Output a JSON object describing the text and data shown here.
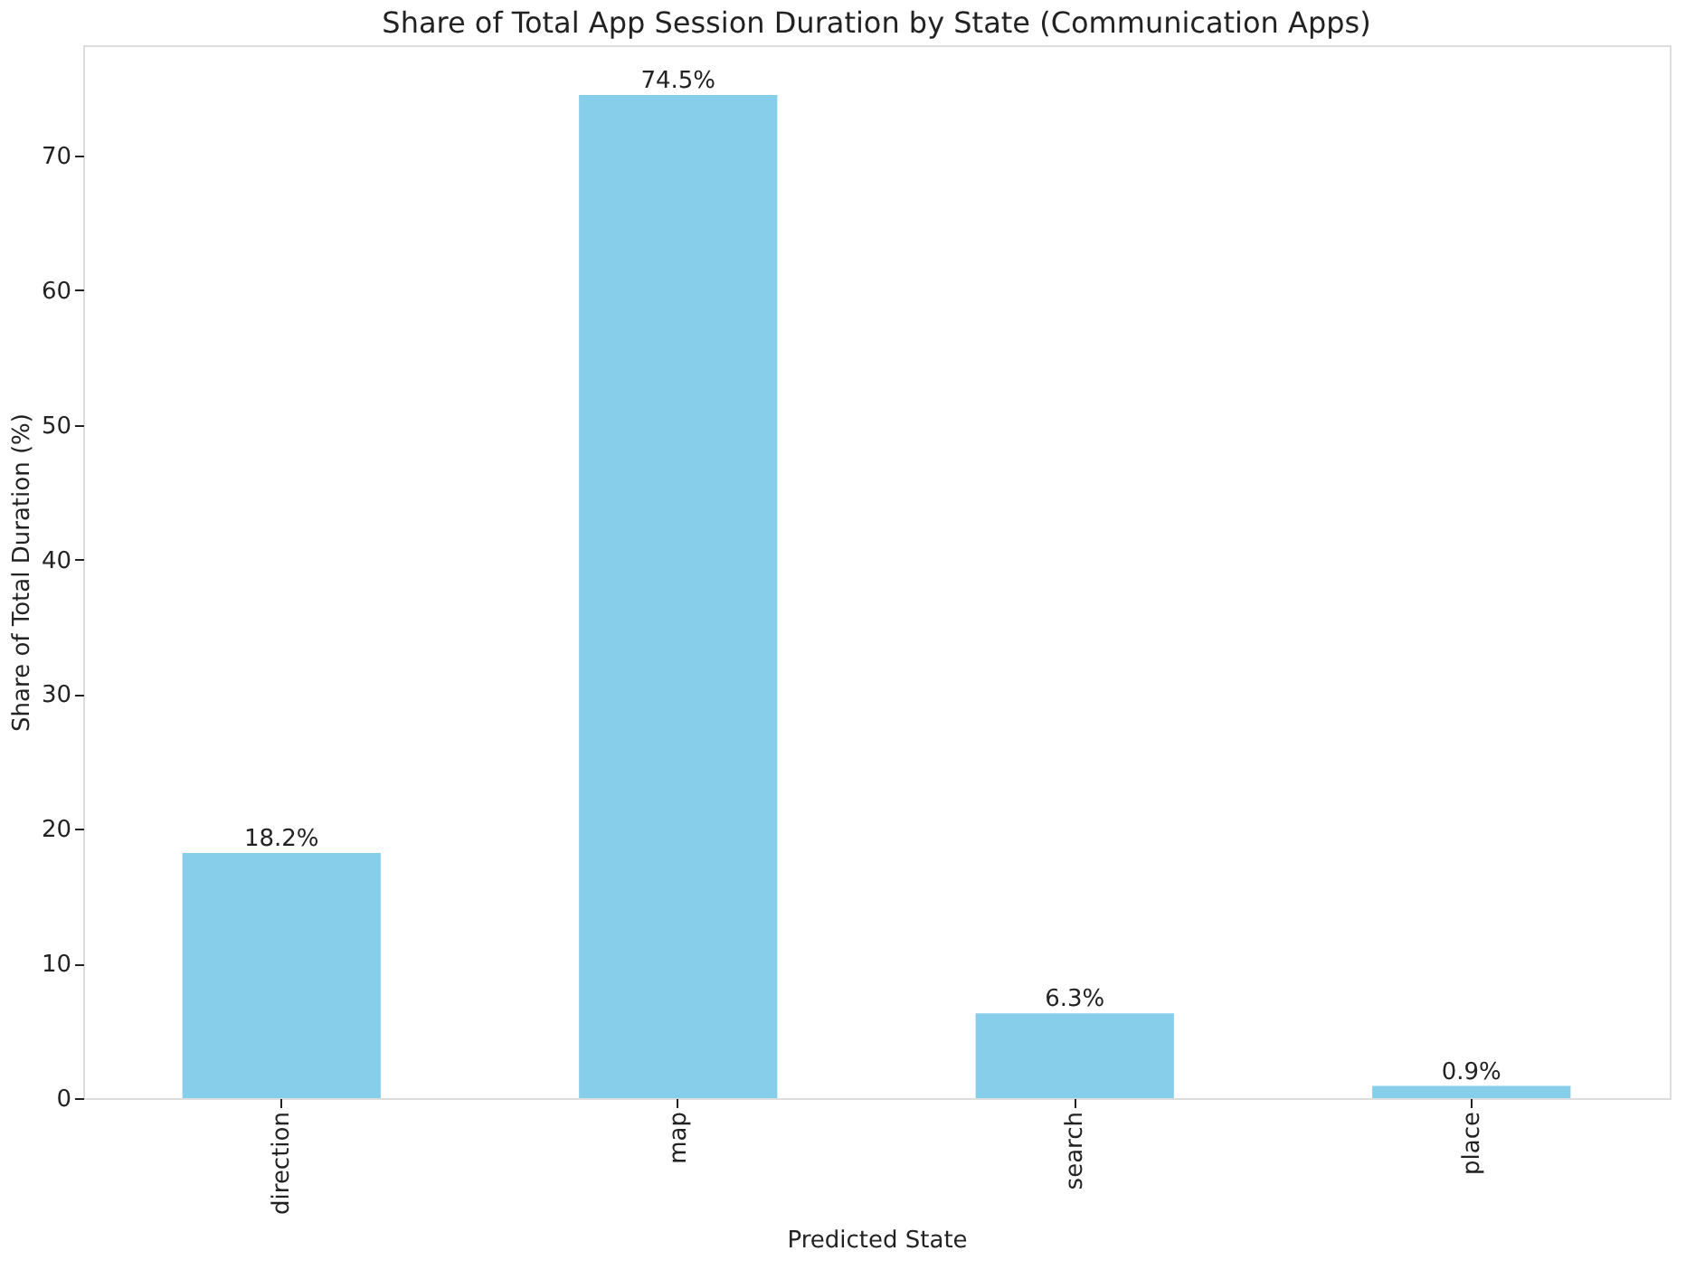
{
  "chart_data": {
    "type": "bar",
    "title": "Share of Total App Session Duration by State (Communication Apps)",
    "xlabel": "Predicted State",
    "ylabel": "Share of Total Duration (%)",
    "categories": [
      "direction",
      "map",
      "search",
      "place"
    ],
    "values": [
      18.2,
      74.5,
      6.3,
      0.9
    ],
    "value_labels": [
      "18.2%",
      "74.5%",
      "6.3%",
      "0.9%"
    ],
    "color": "#87ceeb",
    "ylim": [
      0,
      78.2
    ],
    "yticks": [
      0,
      10,
      20,
      30,
      40,
      50,
      60,
      70
    ],
    "grid": false
  }
}
